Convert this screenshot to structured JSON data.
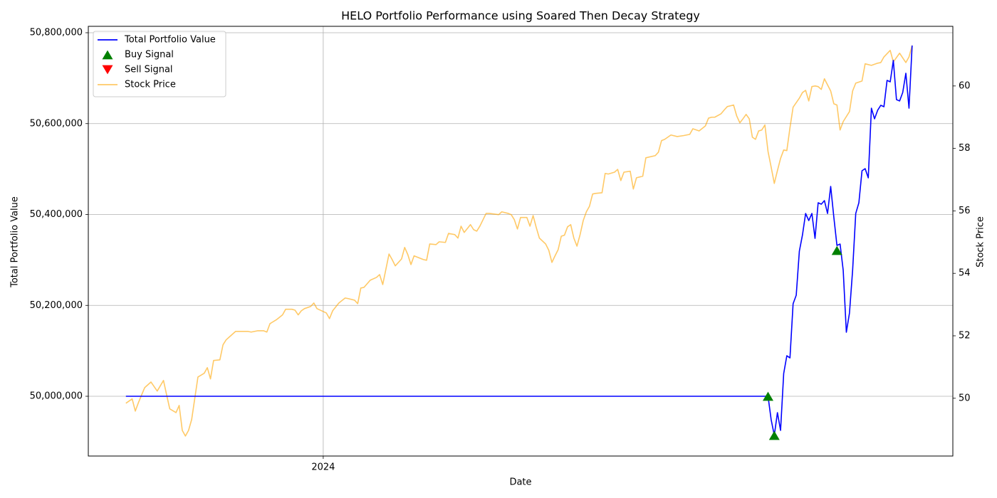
{
  "chart_data": {
    "type": "line",
    "title": "HELO Portfolio Performance using Soared Then Decay Strategy",
    "x_label": "Date",
    "y_label": "Total Portfolio Value",
    "y2_label": "Stock Price",
    "xlim": [
      -12,
      264
    ],
    "xticks": [
      {
        "value": 63,
        "label": "2024"
      }
    ],
    "ylim": [
      49868500,
      50814100
    ],
    "yticks": [
      {
        "value": 50000000,
        "label": "50,000,000"
      },
      {
        "value": 50200000,
        "label": "50,200,000"
      },
      {
        "value": 50400000,
        "label": "50,400,000"
      },
      {
        "value": 50600000,
        "label": "50,600,000"
      },
      {
        "value": 50800000,
        "label": "50,800,000"
      }
    ],
    "y2lim": [
      48.15,
      61.91
    ],
    "y2ticks": [
      50,
      52,
      54,
      56,
      58,
      60
    ],
    "grid": true,
    "legend": "upper-left",
    "series": [
      {
        "name": "Total Portfolio Value",
        "color": "#0000ff",
        "kind": "line",
        "x": [
          0,
          205,
          206,
          207,
          208,
          209,
          210,
          211,
          212,
          213,
          214,
          215,
          216,
          217,
          218,
          219,
          220,
          221,
          222,
          223,
          224,
          225,
          226,
          227,
          228,
          229,
          230,
          231,
          232,
          233,
          234,
          235,
          236,
          237,
          238,
          239,
          240,
          241,
          242,
          243,
          244,
          245,
          246,
          247,
          248,
          249,
          250,
          251
        ],
        "values": [
          50000000,
          50000000,
          49948300,
          49913900,
          49964000,
          49924900,
          50050100,
          50089200,
          50084500,
          50203500,
          50222300,
          50319400,
          50355300,
          50402300,
          50386700,
          50402300,
          50347500,
          50425800,
          50422700,
          50430500,
          50402300,
          50461800,
          50394500,
          50331900,
          50335000,
          50277100,
          50140900,
          50183200,
          50277100,
          50402300,
          50425800,
          50496300,
          50500900,
          50480600,
          50634000,
          50610600,
          50629400,
          50640300,
          50637200,
          50695100,
          50692000,
          50739000,
          50652900,
          50649800,
          50668500,
          50710800,
          50634000,
          50771800
        ]
      },
      {
        "name": "Buy Signal",
        "color": "#008000",
        "kind": "marker",
        "marker": "triangle-up",
        "x": [
          205,
          207,
          227
        ],
        "values": [
          50000000,
          49913900,
          50321000
        ]
      },
      {
        "name": "Sell Signal",
        "color": "#ff0000",
        "kind": "marker",
        "marker": "triangle-down",
        "x": [],
        "values": []
      },
      {
        "name": "Stock Price",
        "color": "#ffa500",
        "alpha": 0.6,
        "kind": "line",
        "axis": "y2",
        "x": [
          0,
          2,
          3,
          4,
          6,
          8,
          10,
          12,
          13,
          14,
          16,
          17,
          18,
          19,
          20,
          21,
          22,
          23,
          25,
          26,
          27,
          28,
          30,
          31,
          32,
          33,
          35,
          36,
          39,
          40,
          42,
          44,
          45,
          46,
          48,
          50,
          51,
          53,
          54,
          55,
          56,
          57,
          59,
          60,
          61,
          64,
          65,
          66,
          68,
          70,
          71,
          73,
          74,
          75,
          76,
          78,
          80,
          81,
          82,
          84,
          85,
          86,
          88,
          89,
          90,
          91,
          92,
          95,
          96,
          97,
          99,
          100,
          102,
          103,
          105,
          106,
          107,
          108,
          110,
          111,
          112,
          113,
          115,
          116,
          119,
          120,
          122,
          123,
          124,
          125,
          126,
          128,
          129,
          130,
          131,
          132,
          134,
          135,
          136,
          137,
          138,
          139,
          140,
          141,
          142,
          143,
          144,
          145,
          146,
          147,
          148,
          149,
          150,
          152,
          153,
          154,
          156,
          157,
          158,
          159,
          161,
          162,
          163,
          165,
          166,
          169,
          170,
          171,
          172,
          174,
          176,
          178,
          180,
          181,
          183,
          185,
          186,
          187,
          188,
          190,
          191,
          192,
          194,
          195,
          196,
          197,
          198,
          199,
          200,
          201,
          202,
          203,
          204,
          205,
          206,
          207,
          208,
          209,
          210,
          211,
          212,
          213,
          215,
          216,
          217,
          218,
          219,
          220,
          221,
          222,
          223,
          225,
          226,
          227,
          228,
          229,
          231,
          232,
          233,
          235,
          236,
          238,
          240,
          241,
          242,
          244,
          245,
          247,
          249,
          250,
          251
        ],
        "values": [
          49.84,
          49.98,
          49.59,
          49.86,
          50.34,
          50.52,
          50.23,
          50.57,
          50.11,
          49.66,
          49.54,
          49.77,
          48.97,
          48.79,
          48.97,
          49.32,
          50.0,
          50.68,
          50.8,
          50.98,
          50.62,
          51.21,
          51.23,
          51.71,
          51.87,
          51.96,
          52.14,
          52.14,
          52.14,
          52.12,
          52.16,
          52.16,
          52.12,
          52.39,
          52.51,
          52.67,
          52.85,
          52.85,
          52.82,
          52.67,
          52.8,
          52.87,
          52.94,
          53.05,
          52.87,
          52.73,
          52.55,
          52.8,
          53.05,
          53.21,
          53.19,
          53.14,
          53.03,
          53.53,
          53.55,
          53.78,
          53.87,
          53.96,
          53.64,
          54.62,
          54.44,
          54.24,
          54.46,
          54.83,
          54.6,
          54.28,
          54.56,
          54.44,
          54.42,
          54.94,
          54.92,
          55.01,
          54.99,
          55.28,
          55.24,
          55.13,
          55.51,
          55.31,
          55.56,
          55.4,
          55.35,
          55.51,
          55.92,
          55.92,
          55.88,
          55.97,
          55.92,
          55.88,
          55.72,
          55.42,
          55.79,
          55.79,
          55.51,
          55.85,
          55.47,
          55.13,
          54.94,
          54.74,
          54.35,
          54.56,
          54.76,
          55.19,
          55.22,
          55.49,
          55.56,
          55.13,
          54.87,
          55.24,
          55.69,
          55.97,
          56.15,
          56.54,
          56.56,
          56.58,
          57.2,
          57.18,
          57.24,
          57.33,
          56.97,
          57.24,
          57.27,
          56.7,
          57.06,
          57.11,
          57.7,
          57.77,
          57.88,
          58.25,
          58.29,
          58.43,
          58.38,
          58.41,
          58.45,
          58.63,
          58.56,
          58.72,
          58.97,
          59.0,
          59.0,
          59.11,
          59.23,
          59.34,
          59.39,
          59.04,
          58.82,
          58.95,
          59.09,
          58.95,
          58.36,
          58.29,
          58.56,
          58.59,
          58.75,
          57.9,
          57.4,
          56.88,
          57.29,
          57.68,
          57.95,
          57.93,
          58.66,
          59.32,
          59.61,
          59.79,
          59.86,
          59.52,
          59.98,
          60.0,
          59.98,
          59.89,
          60.23,
          59.84,
          59.43,
          59.39,
          58.59,
          58.86,
          59.18,
          59.84,
          60.09,
          60.16,
          60.71,
          60.66,
          60.73,
          60.75,
          60.93,
          61.14,
          60.77,
          61.05,
          60.75,
          60.93,
          61.3
        ]
      }
    ]
  }
}
